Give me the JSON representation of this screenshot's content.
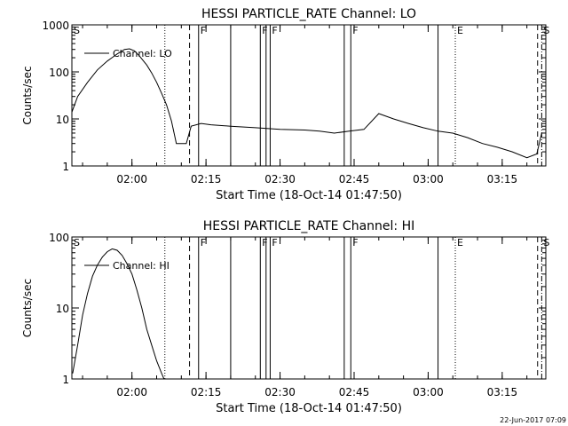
{
  "footer": "22-Jun-2017 07:09",
  "chart_data": [
    {
      "type": "line",
      "title": "HESSI PARTICLE_RATE Channel: LO",
      "xlabel": "Start Time (18-Oct-14 01:47:50)",
      "ylabel": "Counts/sec",
      "yscale": "log",
      "ylim": [
        1,
        1000
      ],
      "yticks": [
        "1",
        "10",
        "100",
        "1000"
      ],
      "xlim_minutes_after_0147_50": [
        0,
        96
      ],
      "xticks": [
        "02:00",
        "02:15",
        "02:30",
        "02:45",
        "03:00",
        "03:15"
      ],
      "legend": "Channel: LO",
      "legend_position": "top-left",
      "series": [
        {
          "name": "Channel: LO",
          "x_time": [
            "01:47:50",
            "01:49:00",
            "01:51:00",
            "01:53:00",
            "01:55:00",
            "01:57:00",
            "01:58:30",
            "01:59:30",
            "02:00:30",
            "02:01:30",
            "02:03:00",
            "02:04:00",
            "02:05:00",
            "02:06:00",
            "02:07:00",
            "02:08:00",
            "02:09:00",
            "02:10:00",
            "02:11:00",
            "02:12:00",
            "02:14:00",
            "02:16:00",
            "02:20:00",
            "02:25:00",
            "02:30:00",
            "02:35:00",
            "02:38:00",
            "02:41:00",
            "02:44:00",
            "02:47:00",
            "02:50:00",
            "02:53:00",
            "02:56:00",
            "02:59:00",
            "03:02:00",
            "03:05:00",
            "03:08:00",
            "03:11:00",
            "03:14:00",
            "03:17:00",
            "03:20:00",
            "03:22:00",
            "03:23:00"
          ],
          "y": [
            14,
            30,
            60,
            110,
            170,
            240,
            300,
            310,
            280,
            220,
            140,
            95,
            60,
            35,
            20,
            9,
            3,
            3,
            3,
            7,
            8,
            7.5,
            7,
            6.5,
            6,
            5.8,
            5.5,
            5,
            5.5,
            6,
            13,
            10,
            8,
            6.5,
            5.5,
            5,
            4,
            3,
            2.5,
            2,
            1.5,
            1.8,
            5
          ]
        }
      ],
      "annotations": [
        {
          "label": "S",
          "time": "01:47:50",
          "style": "solid"
        },
        {
          "label": "",
          "time": "02:06:40",
          "style": "dotted"
        },
        {
          "label": "",
          "time": "02:11:40",
          "style": "dashed"
        },
        {
          "label": "F",
          "time": "02:13:30",
          "style": "solid"
        },
        {
          "label": "",
          "time": "02:20:00",
          "style": "solid"
        },
        {
          "label": "F",
          "time": "02:26:00",
          "style": "solid"
        },
        {
          "label": "",
          "time": "02:27:10",
          "style": "solid"
        },
        {
          "label": "F",
          "time": "02:28:00",
          "style": "solid"
        },
        {
          "label": "",
          "time": "02:43:00",
          "style": "solid"
        },
        {
          "label": "F",
          "time": "02:44:20",
          "style": "solid"
        },
        {
          "label": "",
          "time": "03:02:00",
          "style": "solid"
        },
        {
          "label": "E",
          "time": "03:05:30",
          "style": "dotted"
        },
        {
          "label": "",
          "time": "03:22:10",
          "style": "dashed"
        },
        {
          "label": "S",
          "time": "03:23:00",
          "style": "dashdot"
        }
      ]
    },
    {
      "type": "line",
      "title": "HESSI PARTICLE_RATE Channel: HI",
      "xlabel": "Start Time (18-Oct-14 01:47:50)",
      "ylabel": "Counts/sec",
      "yscale": "log",
      "ylim": [
        1,
        100
      ],
      "yticks": [
        "1",
        "10",
        "100"
      ],
      "xlim_minutes_after_0147_50": [
        0,
        96
      ],
      "xticks": [
        "02:00",
        "02:15",
        "02:30",
        "02:45",
        "03:00",
        "03:15"
      ],
      "legend": "Channel: HI",
      "legend_position": "top-left",
      "series": [
        {
          "name": "Channel: HI",
          "x_time": [
            "01:48:00",
            "01:49:00",
            "01:50:00",
            "01:51:00",
            "01:52:00",
            "01:53:00",
            "01:54:00",
            "01:55:00",
            "01:56:00",
            "01:57:00",
            "01:58:00",
            "01:59:00",
            "02:00:00",
            "02:01:00",
            "02:02:00",
            "02:03:00",
            "02:04:00",
            "02:05:00",
            "02:06:00",
            "02:06:30"
          ],
          "y": [
            1.2,
            3,
            8,
            16,
            28,
            40,
            52,
            62,
            68,
            65,
            55,
            42,
            30,
            18,
            10,
            5,
            3,
            1.8,
            1.2,
            1
          ]
        }
      ],
      "annotations": [
        {
          "label": "S",
          "time": "01:47:50",
          "style": "solid"
        },
        {
          "label": "",
          "time": "02:06:40",
          "style": "dotted"
        },
        {
          "label": "",
          "time": "02:11:40",
          "style": "dashed"
        },
        {
          "label": "F",
          "time": "02:13:30",
          "style": "solid"
        },
        {
          "label": "",
          "time": "02:20:00",
          "style": "solid"
        },
        {
          "label": "F",
          "time": "02:26:00",
          "style": "solid"
        },
        {
          "label": "",
          "time": "02:27:10",
          "style": "solid"
        },
        {
          "label": "F",
          "time": "02:28:00",
          "style": "solid"
        },
        {
          "label": "",
          "time": "02:43:00",
          "style": "solid"
        },
        {
          "label": "F",
          "time": "02:44:20",
          "style": "solid"
        },
        {
          "label": "",
          "time": "03:02:00",
          "style": "solid"
        },
        {
          "label": "E",
          "time": "03:05:30",
          "style": "dotted"
        },
        {
          "label": "",
          "time": "03:22:10",
          "style": "dashed"
        },
        {
          "label": "S",
          "time": "03:23:00",
          "style": "dashdot"
        }
      ]
    }
  ]
}
